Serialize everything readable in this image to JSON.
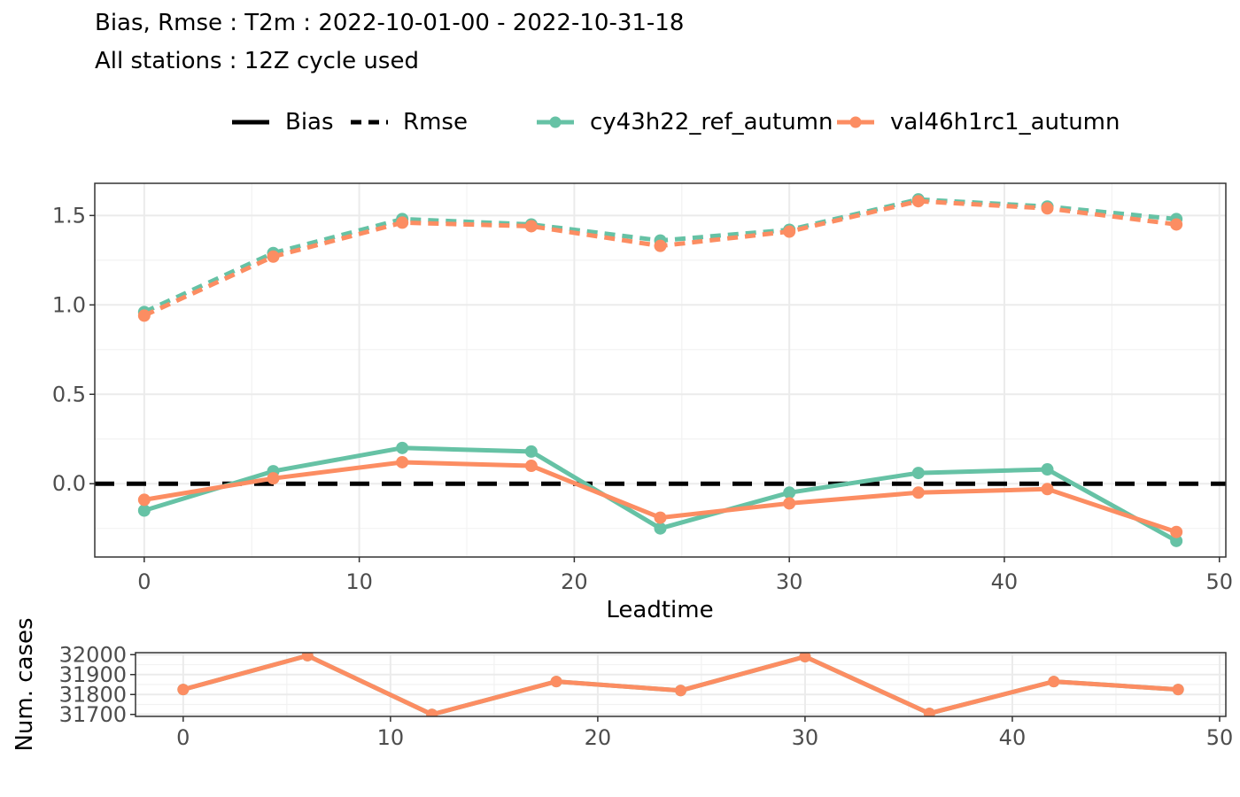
{
  "titles": {
    "line1": "Bias, Rmse : T2m : 2022-10-01-00 - 2022-10-31-18",
    "line2": "All stations : 12Z cycle used"
  },
  "legend": {
    "bias_label": "Bias",
    "rmse_label": "Rmse",
    "model1_label": "cy43h22_ref_autumn",
    "model2_label": "val46h1rc1_autumn"
  },
  "colors": {
    "model1": "#66c2a5",
    "model2": "#fc8d62",
    "zero_line": "#000000"
  },
  "chart_data": [
    {
      "type": "line",
      "panel": "main",
      "title": "Bias, Rmse : T2m : 2022-10-01-00 - 2022-10-31-18",
      "subtitle": "All stations : 12Z cycle used",
      "xlabel": "Leadtime",
      "ylabel": "",
      "x": [
        0,
        6,
        12,
        18,
        24,
        30,
        36,
        42,
        48
      ],
      "xlim": [
        -2.3,
        50.3
      ],
      "ylim": [
        -0.41,
        1.68
      ],
      "xticks": [
        0,
        10,
        20,
        30,
        40,
        50
      ],
      "yticks": [
        0.0,
        0.5,
        1.0,
        1.5
      ],
      "ytick_labels": [
        "0.0",
        "0.5",
        "1.0",
        "1.5"
      ],
      "grid": true,
      "legend_position": "top",
      "hline": 0,
      "series": [
        {
          "name": "cy43h22_ref_autumn",
          "metric": "Rmse",
          "values": [
            0.96,
            1.29,
            1.48,
            1.45,
            1.36,
            1.42,
            1.59,
            1.55,
            1.48
          ]
        },
        {
          "name": "val46h1rc1_autumn",
          "metric": "Rmse",
          "values": [
            0.94,
            1.27,
            1.46,
            1.44,
            1.33,
            1.41,
            1.58,
            1.54,
            1.45
          ]
        },
        {
          "name": "cy43h22_ref_autumn",
          "metric": "Bias",
          "values": [
            -0.15,
            0.07,
            0.2,
            0.18,
            -0.25,
            -0.05,
            0.06,
            0.08,
            -0.32
          ]
        },
        {
          "name": "val46h1rc1_autumn",
          "metric": "Bias",
          "values": [
            -0.09,
            0.03,
            0.12,
            0.1,
            -0.19,
            -0.11,
            -0.05,
            -0.03,
            -0.27
          ]
        }
      ]
    },
    {
      "type": "line",
      "panel": "cases",
      "xlabel": "",
      "ylabel": "Num. cases",
      "x": [
        0,
        6,
        12,
        18,
        24,
        30,
        36,
        42,
        48
      ],
      "xlim": [
        -2.3,
        50.3
      ],
      "ylim": [
        31690,
        32010
      ],
      "xticks": [
        0,
        10,
        20,
        30,
        40,
        50
      ],
      "yticks": [
        31700,
        31800,
        31900,
        32000
      ],
      "grid": true,
      "series": [
        {
          "name": "cy43h22_ref_autumn",
          "values": [
            31825,
            31995,
            31700,
            31865,
            31820,
            31990,
            31705,
            31865,
            31825
          ]
        },
        {
          "name": "val46h1rc1_autumn",
          "values": [
            31825,
            31995,
            31700,
            31865,
            31820,
            31990,
            31705,
            31865,
            31825
          ]
        }
      ]
    }
  ]
}
